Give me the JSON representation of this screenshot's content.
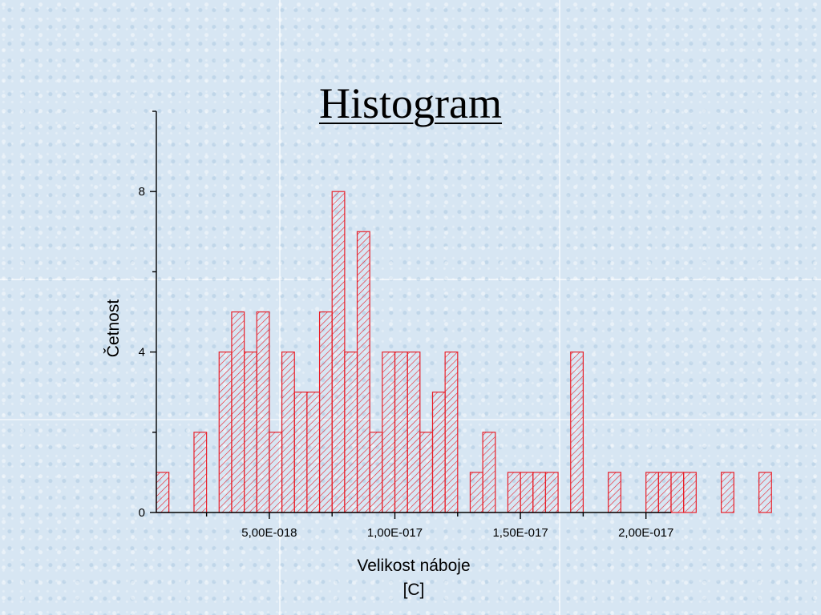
{
  "slide": {
    "title": "Histogram"
  },
  "chart_data": {
    "type": "bar",
    "title": "Histogram",
    "xlabel_line1": "Velikost náboje",
    "xlabel_line2": "[C]",
    "ylabel": "Četnost",
    "bar_color": "#e8202a",
    "bin_width": 5e-19,
    "bin_start": 5e-19,
    "counts": [
      1,
      0,
      0,
      2,
      0,
      4,
      5,
      4,
      5,
      2,
      4,
      3,
      3,
      5,
      8,
      4,
      7,
      2,
      4,
      4,
      4,
      2,
      3,
      4,
      0,
      1,
      2,
      0,
      1,
      1,
      1,
      1,
      0,
      4,
      0,
      0,
      1,
      0,
      0,
      1,
      1,
      1,
      1,
      0,
      0,
      1,
      0,
      0,
      1
    ],
    "xlim": [
      5e-19,
      2.1e-17
    ],
    "ylim": [
      0,
      10
    ],
    "x_ticks": [
      5e-18,
      1e-17,
      1.5e-17,
      2e-17
    ],
    "x_tick_labels": [
      "5,00E-018",
      "1,00E-017",
      "1,50E-017",
      "2,00E-017"
    ],
    "y_ticks": [
      0,
      4,
      8
    ],
    "y_tick_labels": [
      "0",
      "4",
      "8"
    ],
    "grid": false
  }
}
